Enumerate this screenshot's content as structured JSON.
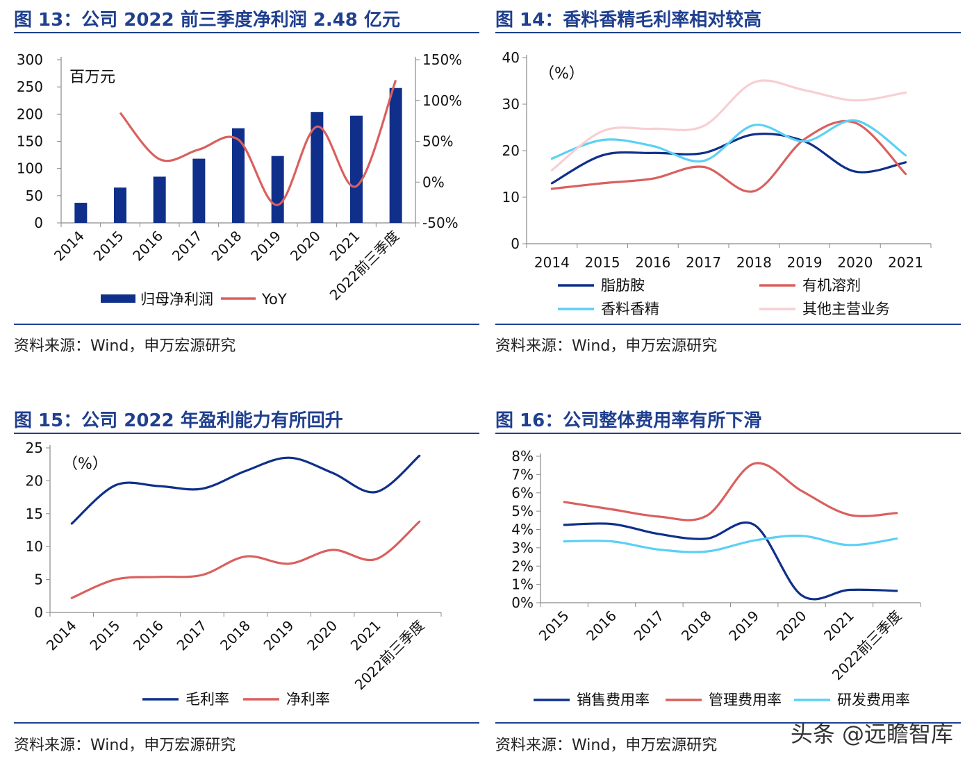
{
  "source_text": "资料来源：Wind，申万宏源研究",
  "watermark": "头条 @远瞻智库",
  "colors": {
    "navy": "#0f2f8a",
    "red": "#d9605e",
    "sky": "#5bd0f5",
    "pink": "#f7cfd2",
    "title": "#1f3f8f"
  },
  "chart_data": [
    {
      "id": "fig13",
      "type": "bar",
      "title": "图 13：公司 2022 前三季度净利润 2.48 亿元",
      "unit_label": "百万元",
      "categories": [
        "2014",
        "2015",
        "2016",
        "2017",
        "2018",
        "2019",
        "2020",
        "2021",
        "2022前三季度"
      ],
      "series": [
        {
          "name": "归母净利润",
          "type": "bar",
          "axis": "left",
          "color": "#0f2f8a",
          "values": [
            37,
            65,
            85,
            118,
            174,
            123,
            204,
            197,
            248
          ]
        },
        {
          "name": "YoY",
          "type": "line",
          "axis": "right",
          "color": "#d9605e",
          "values": [
            null,
            85,
            28,
            40,
            52,
            -28,
            68,
            -5,
            125
          ]
        }
      ],
      "y_left": {
        "ticks": [
          0,
          50,
          100,
          150,
          200,
          250,
          300
        ],
        "ylim": [
          0,
          300
        ]
      },
      "y_right": {
        "ticks": [
          "-50%",
          "0%",
          "50%",
          "100%",
          "150%"
        ],
        "ylim": [
          -50,
          150
        ]
      }
    },
    {
      "id": "fig14",
      "type": "line",
      "title": "图 14：香料香精毛利率相对较高",
      "unit_label": "（%）",
      "categories": [
        "2014",
        "2015",
        "2016",
        "2017",
        "2018",
        "2019",
        "2020",
        "2021"
      ],
      "series": [
        {
          "name": "脂肪胺",
          "color": "#0f2f8a",
          "values": [
            13,
            19,
            19.5,
            19.5,
            23.5,
            22,
            15.5,
            17.5
          ]
        },
        {
          "name": "有机溶剂",
          "color": "#d9605e",
          "values": [
            11.8,
            13,
            14,
            16.5,
            11.3,
            22.5,
            26,
            15
          ]
        },
        {
          "name": "香料香精",
          "color": "#5bd0f5",
          "values": [
            18.3,
            22.3,
            21,
            17.8,
            25.5,
            22,
            26.5,
            19
          ]
        },
        {
          "name": "其他主营业务",
          "color": "#f7cfd2",
          "values": [
            15.8,
            24.2,
            24.7,
            25.3,
            34.7,
            33,
            30.8,
            32.5
          ]
        }
      ],
      "y": {
        "ticks": [
          0,
          10,
          20,
          30,
          40
        ],
        "ylim": [
          0,
          40
        ]
      }
    },
    {
      "id": "fig15",
      "type": "line",
      "title": "图 15：公司 2022 年盈利能力有所回升",
      "unit_label": "（%）",
      "categories": [
        "2014",
        "2015",
        "2016",
        "2017",
        "2018",
        "2019",
        "2020",
        "2021",
        "2022前三季度"
      ],
      "series": [
        {
          "name": "毛利率",
          "color": "#0f2f8a",
          "values": [
            13.5,
            19.3,
            19.2,
            18.8,
            21.5,
            23.5,
            21.2,
            18.3,
            23.8
          ]
        },
        {
          "name": "净利率",
          "color": "#d9605e",
          "values": [
            2.2,
            5,
            5.4,
            5.7,
            8.5,
            7.4,
            9.5,
            8.1,
            13.8
          ]
        }
      ],
      "y": {
        "ticks": [
          0,
          5,
          10,
          15,
          20,
          25
        ],
        "ylim": [
          0,
          25
        ]
      }
    },
    {
      "id": "fig16",
      "type": "line",
      "title": "图 16：公司整体费用率有所下滑",
      "categories": [
        "2015",
        "2016",
        "2017",
        "2018",
        "2019",
        "2020",
        "2021",
        "2022前三季度"
      ],
      "series": [
        {
          "name": "销售费用率",
          "color": "#0f2f8a",
          "values": [
            4.25,
            4.3,
            3.75,
            3.5,
            4.25,
            0.4,
            0.7,
            0.65
          ]
        },
        {
          "name": "管理费用率",
          "color": "#d9605e",
          "values": [
            5.5,
            5.1,
            4.7,
            4.75,
            7.6,
            6.1,
            4.8,
            4.9
          ]
        },
        {
          "name": "研发费用率",
          "color": "#5bd0f5",
          "values": [
            3.35,
            3.35,
            2.9,
            2.8,
            3.4,
            3.65,
            3.15,
            3.5
          ]
        }
      ],
      "y": {
        "ticks": [
          "0%",
          "1%",
          "2%",
          "3%",
          "4%",
          "5%",
          "6%",
          "7%",
          "8%"
        ],
        "ylim": [
          0,
          8
        ]
      }
    }
  ]
}
